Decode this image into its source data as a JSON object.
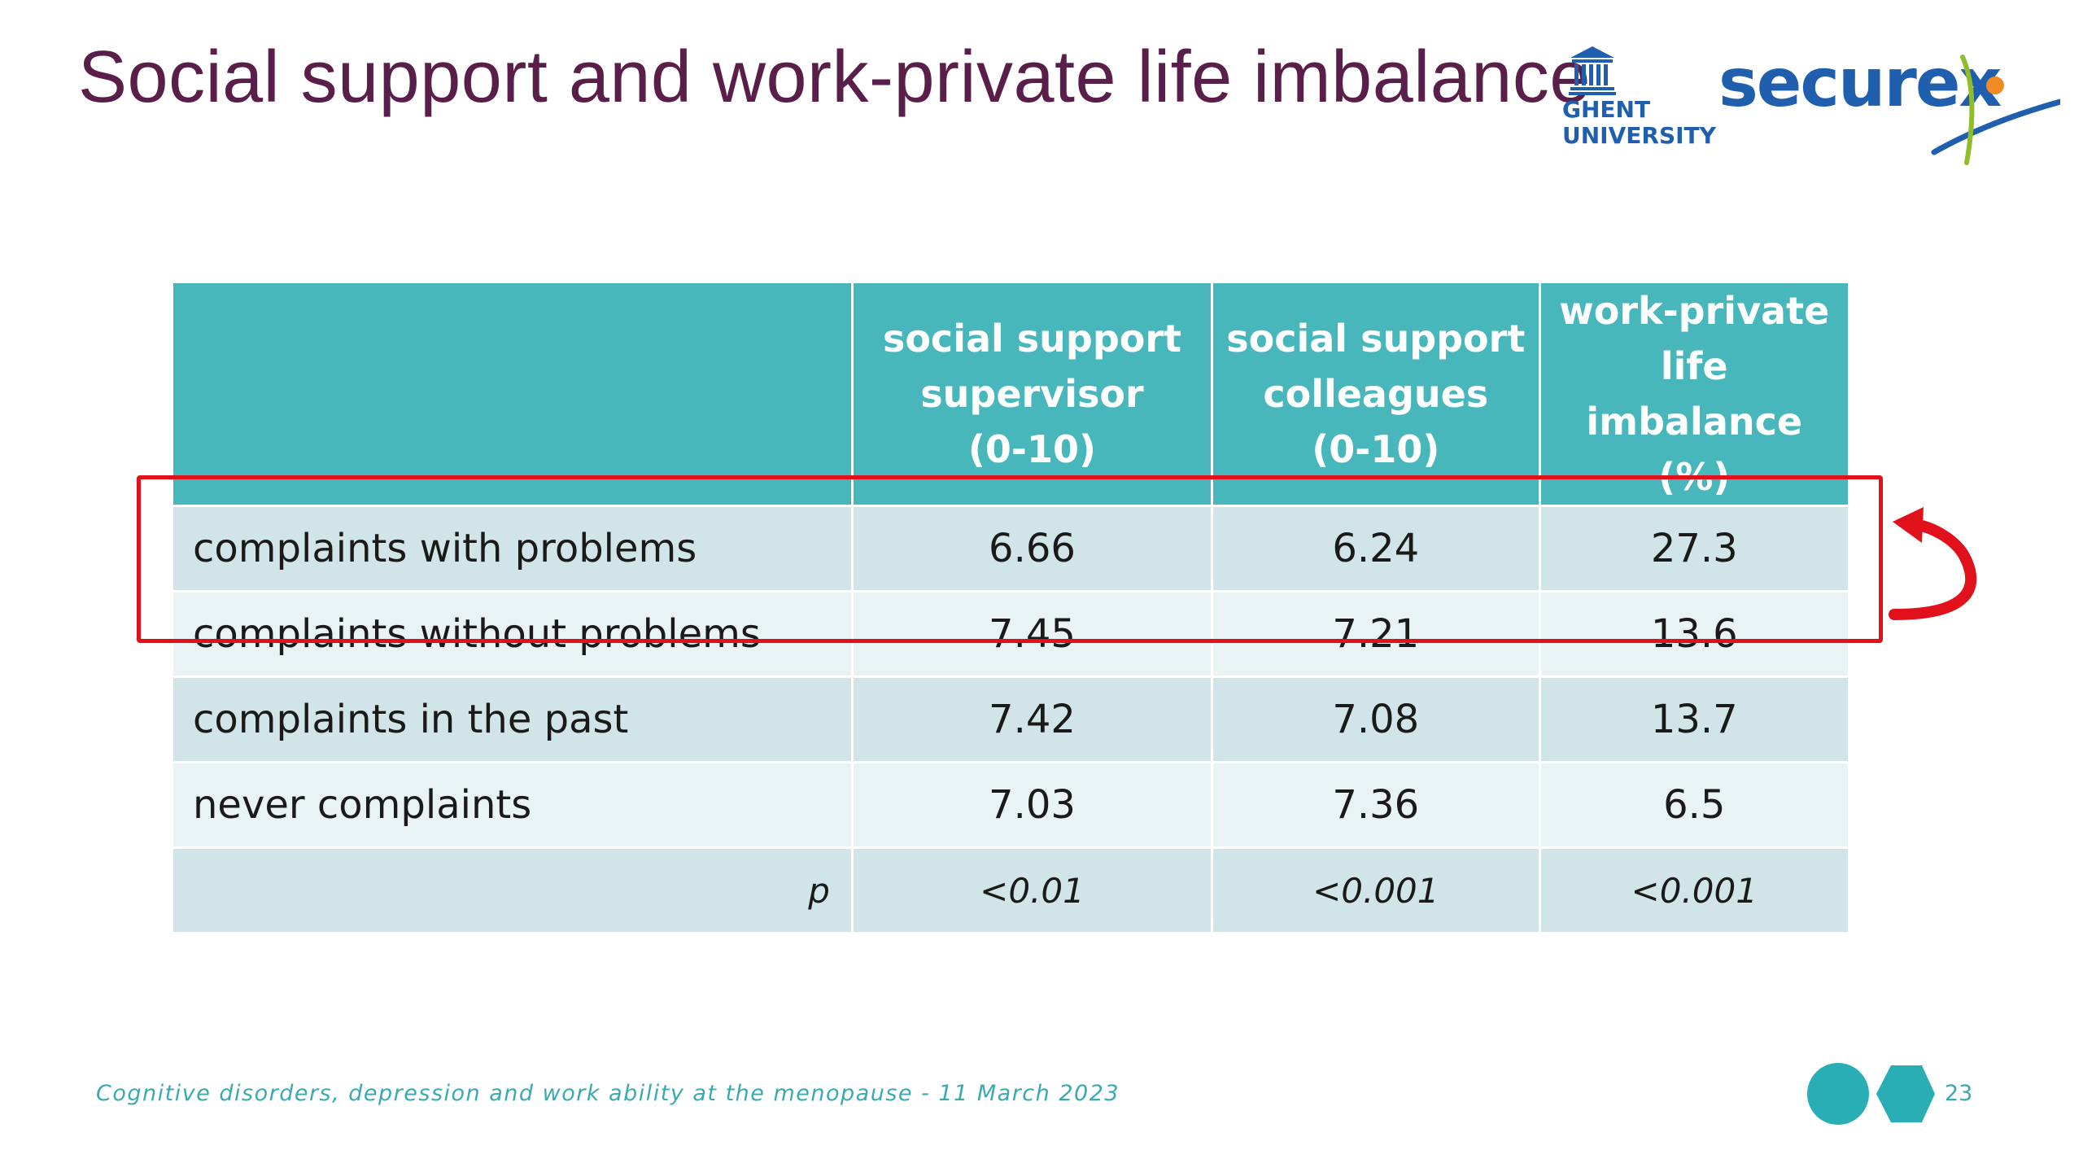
{
  "slide": {
    "title": "Social support and work-private life imbalance",
    "page_number": "23",
    "footer": "Cognitive disorders, depression and work ability at the menopause - 11 March 2023"
  },
  "logos": {
    "ugent_line1": "GHENT",
    "ugent_line2": "UNIVERSITY",
    "securex_text": "securex"
  },
  "table": {
    "columns": [
      {
        "line1": "social support",
        "line2": "supervisor",
        "line3": "(0-10)"
      },
      {
        "line1": "social support",
        "line2": "colleagues",
        "line3": "(0-10)"
      },
      {
        "line1": "work-private",
        "line2": "life imbalance",
        "line3": "(%)"
      }
    ],
    "rows": [
      {
        "label": "complaints with problems",
        "a": "6.66",
        "b": "6.24",
        "c": "27.3"
      },
      {
        "label": "complaints without problems",
        "a": "7.45",
        "b": "7.21",
        "c": "13.6"
      },
      {
        "label": "complaints in the past",
        "a": "7.42",
        "b": "7.08",
        "c": "13.7"
      },
      {
        "label": "never complaints",
        "a": "7.03",
        "b": "7.36",
        "c": "6.5"
      }
    ],
    "p_row": {
      "label": "p",
      "a": "<0.01",
      "b": "<0.001",
      "c": "<0.001"
    }
  },
  "colors": {
    "title": "#5a1e4a",
    "header_bg": "#48b7bc",
    "row_dark": "#d1e5e8",
    "row_light": "#e9f3f4",
    "highlight": "#e0111b",
    "brand_blue": "#1f5fae",
    "accent_teal": "#3aaab0"
  }
}
